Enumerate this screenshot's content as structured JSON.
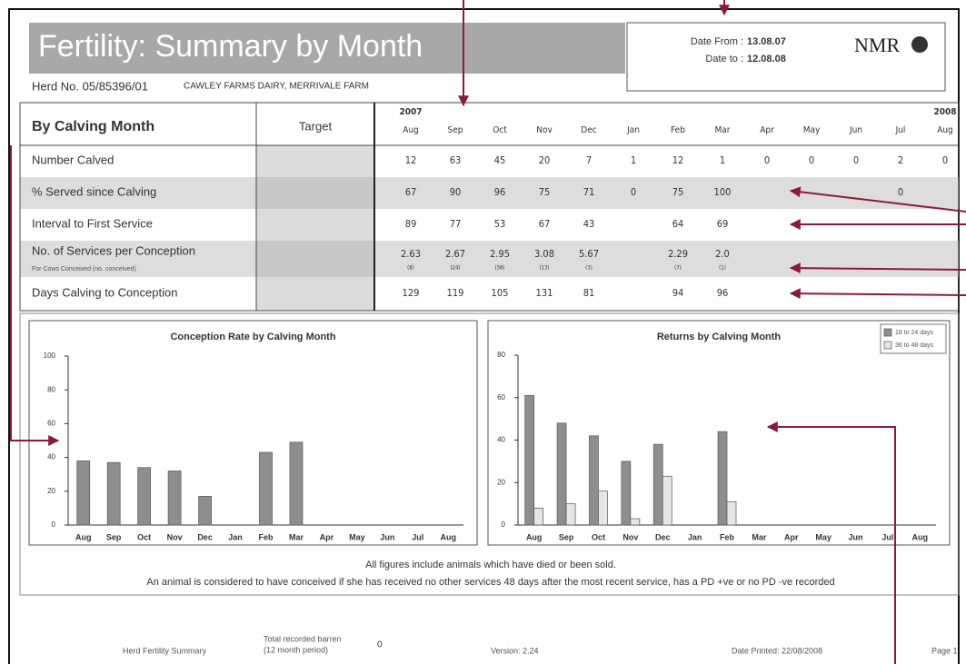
{
  "header": {
    "title": "Fertility: Summary by Month",
    "herd_no": "Herd No. 05/85396/01",
    "farm": "CAWLEY FARMS DAIRY, MERRIVALE FARM",
    "date_from_label": "Date From :",
    "date_from": "13.08.07",
    "date_to_label": "Date to :",
    "date_to": "12.08.08",
    "logo": "NMR"
  },
  "table": {
    "title": "By Calving Month",
    "target_header": "Target",
    "year_start": "2007",
    "year_end": "2008",
    "months": [
      "Aug",
      "Sep",
      "Oct",
      "Nov",
      "Dec",
      "Jan",
      "Feb",
      "Mar",
      "Apr",
      "May",
      "Jun",
      "Jul",
      "Aug"
    ],
    "rows": [
      {
        "label": "Number Calved",
        "values": [
          "12",
          "63",
          "45",
          "20",
          "7",
          "1",
          "12",
          "1",
          "0",
          "0",
          "0",
          "2",
          "0"
        ]
      },
      {
        "label": "% Served since Calving",
        "values": [
          "67",
          "90",
          "96",
          "75",
          "71",
          "0",
          "75",
          "100",
          null,
          null,
          null,
          "0",
          null
        ]
      },
      {
        "label": "Interval to First Service",
        "values": [
          "89",
          "77",
          "53",
          "67",
          "43",
          null,
          "64",
          "69",
          null,
          null,
          null,
          null,
          null
        ]
      },
      {
        "label": "No. of Services per Conception",
        "note": "For Cows Conceived (no. conceived)",
        "values": [
          "2.63",
          "2.67",
          "2.95",
          "3.08",
          "5.67",
          null,
          "2.29",
          "2.0",
          null,
          null,
          null,
          null,
          null
        ],
        "counts": [
          "(8)",
          "(24)",
          "(38)",
          "(13)",
          "(3)",
          null,
          "(7)",
          "(1)",
          null,
          null,
          null,
          null,
          null
        ]
      },
      {
        "label": "Days Calving to Conception",
        "values": [
          "129",
          "119",
          "105",
          "131",
          "81",
          null,
          "94",
          "96",
          null,
          null,
          null,
          null,
          null
        ]
      }
    ]
  },
  "chart_data": [
    {
      "type": "bar",
      "title": "Conception Rate by Calving Month",
      "categories": [
        "Aug",
        "Sep",
        "Oct",
        "Nov",
        "Dec",
        "Jan",
        "Feb",
        "Mar",
        "Apr",
        "May",
        "Jun",
        "Jul",
        "Aug"
      ],
      "values": [
        38,
        37,
        34,
        32,
        17,
        null,
        43,
        49,
        null,
        null,
        null,
        null,
        null
      ],
      "color": "#8e8e8e",
      "ylim": [
        0,
        100
      ],
      "yticks": [
        0,
        20,
        40,
        60,
        80,
        100
      ]
    },
    {
      "type": "bar",
      "title": "Returns by Calving Month",
      "categories": [
        "Aug",
        "Sep",
        "Oct",
        "Nov",
        "Dec",
        "Jan",
        "Feb",
        "Mar",
        "Apr",
        "May",
        "Jun",
        "Jul",
        "Aug"
      ],
      "series": [
        {
          "name": "18 to 24 days",
          "color": "#8e8e8e",
          "values": [
            61,
            48,
            42,
            30,
            38,
            null,
            44,
            null,
            null,
            null,
            null,
            null,
            null
          ]
        },
        {
          "name": "36 to 48 days",
          "color": "#e6e6e6",
          "values": [
            8,
            10,
            16,
            3,
            23,
            null,
            11,
            null,
            null,
            null,
            null,
            null,
            null
          ]
        }
      ],
      "ylim": [
        0,
        80
      ],
      "yticks": [
        0,
        20,
        40,
        60,
        80
      ],
      "legend": "upper right"
    }
  ],
  "notes": [
    "All figures include animals which have died or been sold.",
    "An animal is considered to have conceived if she has received no other services 48 days after the most recent service, has a PD +ve or no PD -ve recorded"
  ],
  "footer": {
    "report": "Herd Fertility Summary",
    "barren_label": "Total recorded barren",
    "barren_period": "(12 month period)",
    "barren_value": "0",
    "version": "Version: 2.24",
    "printed": "Date Printed: 22/08/2008",
    "page": "Page 1"
  }
}
